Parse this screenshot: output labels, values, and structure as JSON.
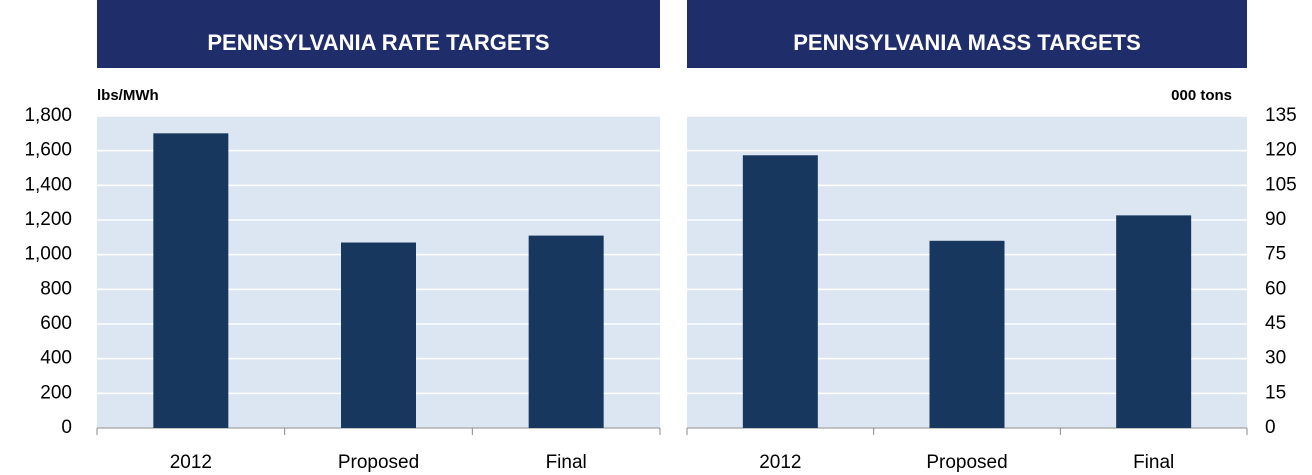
{
  "chart_data": [
    {
      "type": "bar",
      "title": "PENNSYLVANIA RATE TARGETS",
      "y_label": "lbs/MWh",
      "categories": [
        "2012",
        "Proposed",
        "Final"
      ],
      "values": [
        1700,
        1070,
        1110
      ],
      "color": "#17375e",
      "plot_background": "#dce6f2",
      "header_color": "#1f2d6b",
      "ylim": [
        0,
        1800
      ],
      "yticks": [
        0,
        200,
        400,
        600,
        800,
        {
          "value": 1000,
          "label": "1,000"
        },
        {
          "value": 1200,
          "label": "1,200"
        },
        {
          "value": 1400,
          "label": "1,400"
        },
        {
          "value": 1600,
          "label": "1,600"
        },
        {
          "value": 1800,
          "label": "1,800"
        }
      ],
      "y_axis_position": "left",
      "grid": true
    },
    {
      "type": "bar",
      "title": "PENNSYLVANIA MASS TARGETS",
      "y_label": "000 tons",
      "categories": [
        "2012",
        "Proposed",
        "Final"
      ],
      "values": [
        118,
        81,
        92
      ],
      "color": "#17375e",
      "plot_background": "#dce6f2",
      "header_color": "#1f2d6b",
      "ylim": [
        0,
        135
      ],
      "yticks": [
        0,
        15,
        30,
        45,
        60,
        75,
        90,
        105,
        120,
        135
      ],
      "y_axis_position": "right",
      "grid": true
    }
  ]
}
